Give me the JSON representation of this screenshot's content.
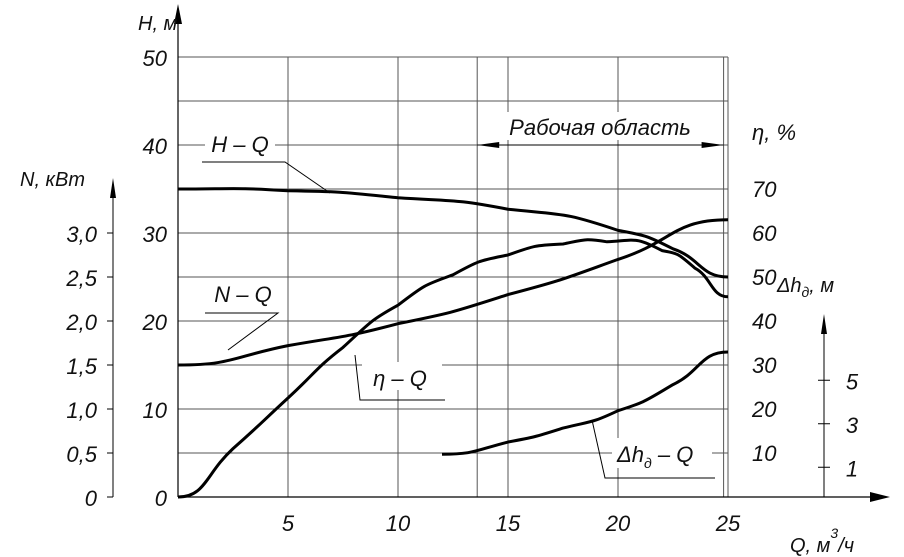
{
  "chart_data": {
    "type": "line",
    "title": "",
    "grid": true,
    "x_axis": {
      "label": "Q, м³/ч",
      "label_main": "Q, м",
      "label_sup": "3",
      "label_tail": "/ч",
      "range": [
        0,
        25
      ],
      "ticks": [
        "5",
        "10",
        "15",
        "20",
        "25"
      ]
    },
    "axes": {
      "H": {
        "label": "H, м",
        "range": [
          0,
          50
        ],
        "ticks": [
          "0",
          "10",
          "20",
          "30",
          "40",
          "50"
        ]
      },
      "N": {
        "label": "N, кВт",
        "range": [
          0,
          3.0
        ],
        "ticks": [
          "0",
          "0,5",
          "1,0",
          "1,5",
          "2,0",
          "2,5",
          "3,0"
        ]
      },
      "eta": {
        "label": "η, %",
        "range": [
          0,
          70
        ],
        "ticks": [
          "10",
          "20",
          "30",
          "40",
          "50",
          "60",
          "70"
        ]
      },
      "dh": {
        "label_main": "Δh",
        "label_sub": "д",
        "label_tail": ", м",
        "ticks": [
          "1",
          "3",
          "5"
        ]
      }
    },
    "series": [
      {
        "name": "H – Q",
        "axis": "H",
        "x": [
          0,
          5,
          10,
          15,
          20,
          22.5,
          25
        ],
        "y": [
          35,
          34.8,
          34,
          32.7,
          30.3,
          28.2,
          25
        ]
      },
      {
        "name": "N – Q",
        "axis": "N",
        "x": [
          0,
          5,
          10,
          15,
          20,
          25
        ],
        "y": [
          1.5,
          1.72,
          1.97,
          2.3,
          2.7,
          3.15
        ]
      },
      {
        "name": "η – Q",
        "axis": "eta",
        "x": [
          0,
          2.5,
          5,
          7.5,
          10,
          12.5,
          15,
          17.5,
          19.5,
          22,
          23.5,
          25
        ],
        "y": [
          0,
          11,
          22.5,
          34,
          43.6,
          50.5,
          55,
          57.5,
          58,
          56,
          52,
          45.5
        ]
      },
      {
        "name": "Δhд – Q",
        "axis": "dh",
        "x": [
          12,
          15,
          17.5,
          20,
          22.5,
          25
        ],
        "y": [
          1.6,
          2.16,
          2.8,
          3.6,
          4.8,
          6.3
        ]
      }
    ],
    "annotations": {
      "working_area": {
        "label": "Рабочая область",
        "x_range": [
          13.6,
          24.8
        ]
      },
      "labels": {
        "hq": "H – Q",
        "nq": "N – Q",
        "eq": "η – Q",
        "dq_main": "Δh",
        "dq_sub": "д",
        "dq_tail": " – Q"
      }
    }
  }
}
